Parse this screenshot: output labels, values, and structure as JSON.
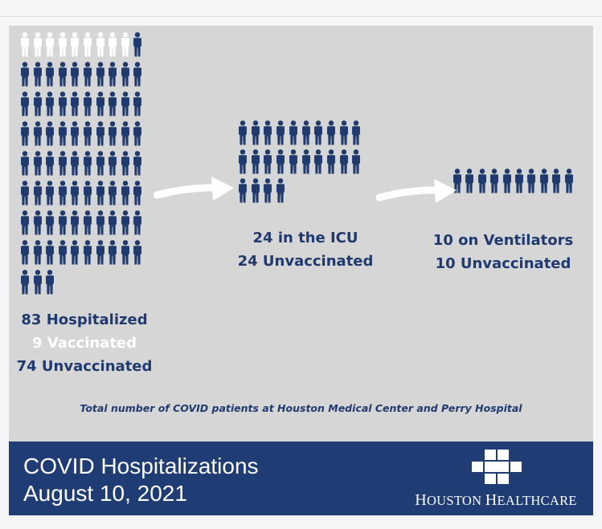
{
  "hospitalized": {
    "total": 83,
    "vaccinated": 9,
    "unvaccinated": 74,
    "line1": "83 Hospitalized",
    "line2": "9 Vaccinated",
    "line3": "74 Unvaccinated"
  },
  "icu": {
    "total": 24,
    "line1": "24 in the ICU",
    "line2": "24 Unvaccinated"
  },
  "ventilators": {
    "total": 10,
    "line1": "10 on Ventilators",
    "line2": "10 Unvaccinated"
  },
  "caption": "Total number of COVID patients at Houston Medical Center and Perry Hospital",
  "banner": {
    "title_line1": "COVID Hospitalizations",
    "title_line2": "August 10, 2021"
  },
  "logo": {
    "word1_initial": "H",
    "word1_rest": "OUSTON",
    "word2_initial": "H",
    "word2_rest": "EALTHCARE"
  },
  "colors": {
    "unvaccinated": "#1f3a6e",
    "vaccinated": "#ffffff",
    "banner": "#1f3c74",
    "background": "#d6d6d6"
  }
}
